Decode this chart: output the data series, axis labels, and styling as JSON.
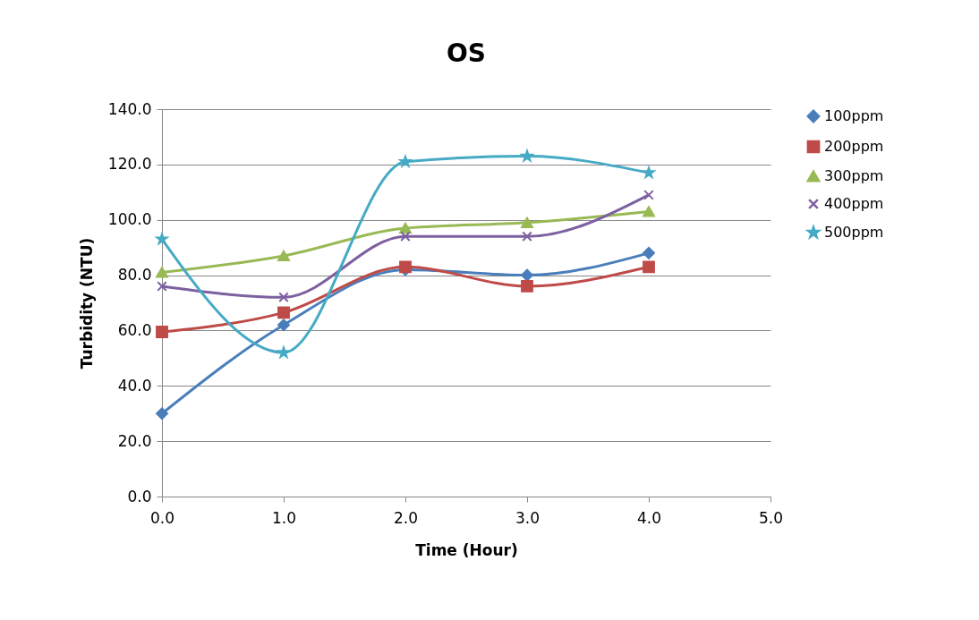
{
  "chart_data": {
    "type": "line",
    "title": "OS",
    "xlabel": "Time (Hour)",
    "ylabel": "Turbidity (NTU)",
    "x": [
      0,
      1,
      2,
      3,
      4
    ],
    "series": [
      {
        "name": "100ppm",
        "color": "#4a7ebb",
        "marker": "diamond",
        "values": [
          30,
          62,
          82,
          80,
          88
        ]
      },
      {
        "name": "200ppm",
        "color": "#be4b48",
        "marker": "square",
        "values": [
          59.5,
          66.5,
          83,
          76,
          83
        ]
      },
      {
        "name": "300ppm",
        "color": "#98b954",
        "marker": "triangle",
        "values": [
          81,
          87,
          97,
          99,
          103
        ]
      },
      {
        "name": "400ppm",
        "color": "#7d60a0",
        "marker": "cross",
        "values": [
          76,
          72,
          94,
          94,
          109
        ]
      },
      {
        "name": "500ppm",
        "color": "#46aac5",
        "marker": "star",
        "values": [
          93,
          52,
          121,
          123,
          117
        ]
      }
    ],
    "xlim": [
      0,
      5
    ],
    "xticks": [
      {
        "value": 0,
        "label": "0.0"
      },
      {
        "value": 1,
        "label": "1.0"
      },
      {
        "value": 2,
        "label": "2.0"
      },
      {
        "value": 3,
        "label": "3.0"
      },
      {
        "value": 4,
        "label": "4.0"
      },
      {
        "value": 5,
        "label": "5.0"
      }
    ],
    "ylim": [
      0,
      140
    ],
    "yticks": [
      {
        "value": 0,
        "label": "0.0"
      },
      {
        "value": 20,
        "label": "20.0"
      },
      {
        "value": 40,
        "label": "40.0"
      },
      {
        "value": 60,
        "label": "60.0"
      },
      {
        "value": 80,
        "label": "80.0"
      },
      {
        "value": 100,
        "label": "100.0"
      },
      {
        "value": 120,
        "label": "120.0"
      },
      {
        "value": 140,
        "label": "140.0"
      }
    ],
    "grid": "y",
    "legend": "right",
    "line_style": "solid"
  }
}
